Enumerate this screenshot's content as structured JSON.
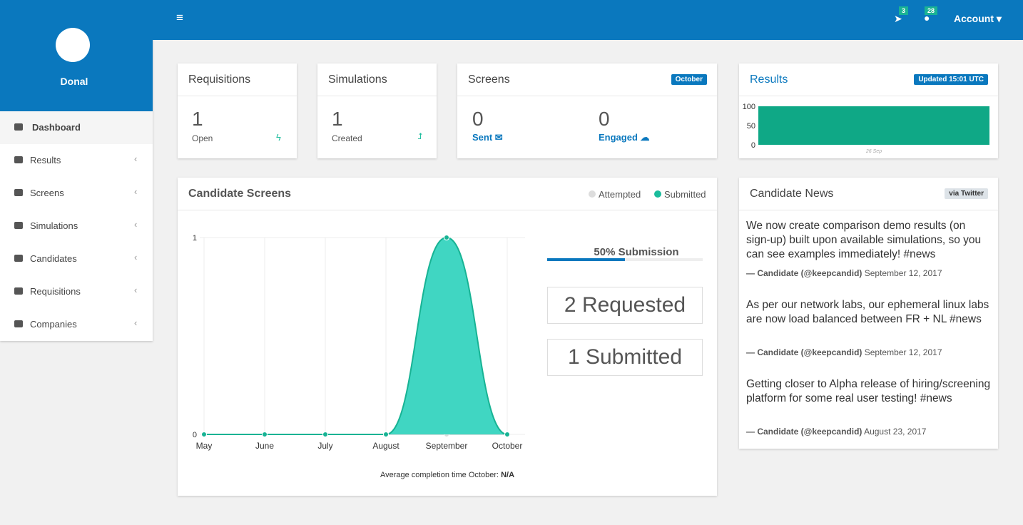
{
  "sidebar": {
    "user": "Donal",
    "menu": [
      "Dashboard",
      "Results",
      "Screens",
      "Simulations",
      "Candidates",
      "Requisitions",
      "Companies"
    ]
  },
  "topbar": {
    "badges": [
      3,
      28
    ],
    "account": "Account"
  },
  "cards": [
    {
      "title": "Requisitions",
      "value": 1,
      "label": "Open"
    },
    {
      "title": "Simulations",
      "value": 1,
      "label": "Created"
    }
  ],
  "screens": {
    "title": "Screens",
    "badge": "October",
    "stats": [
      {
        "value": 0,
        "label": "Sent"
      },
      {
        "value": 0,
        "label": "Engaged"
      }
    ]
  },
  "results": {
    "title": "Results",
    "badge": "Updated 15:01 UTC"
  },
  "candidate_screens": {
    "progress": {
      "value": 50,
      "label": "50% Submission"
    },
    "requested": {
      "value": 2,
      "label": "Requested"
    },
    "submitted": {
      "value": 1,
      "label": "Submitted"
    },
    "footnote": "Average completion time October:",
    "footnote_value": "N/A"
  },
  "news": {
    "title": "Candidate News",
    "badge": "via Twitter",
    "items": [
      {
        "text": "We now create comparison demo results (on sign-up) built upon available simulations, so you can see examples immediately! #news",
        "author": "— Candidate (@keepcandid)",
        "date": "September 12, 2017"
      },
      {
        "text": "As per our network labs, our ephemeral linux labs are now load balanced between FR + NL #news",
        "author": "— Candidate (@keepcandid)",
        "date": "September 12, 2017"
      },
      {
        "text": "Getting closer to Alpha release of hiring/screening platform for some real user testing! #news",
        "author": "— Candidate (@keepcandid)",
        "date": "August 23, 2017"
      }
    ]
  },
  "chart_data": [
    {
      "type": "bar",
      "categories": [
        "26 Sep"
      ],
      "values": [
        100
      ],
      "color": "#0fa886",
      "ylim": [
        0,
        100
      ],
      "yticks": [
        0,
        50,
        100
      ]
    },
    {
      "type": "area",
      "title": "Candidate Screens",
      "categories": [
        "May",
        "June",
        "July",
        "August",
        "September",
        "October"
      ],
      "series": [
        {
          "name": "Attempted",
          "color": "#dddddd",
          "values": [
            0,
            0,
            0,
            0,
            0,
            0
          ]
        },
        {
          "name": "Submitted",
          "color": "#1abc9c",
          "values": [
            0,
            0,
            0,
            0,
            1,
            0
          ]
        }
      ],
      "ylim": [
        0,
        1
      ],
      "yticks": [
        0,
        1
      ],
      "grid": true
    }
  ]
}
